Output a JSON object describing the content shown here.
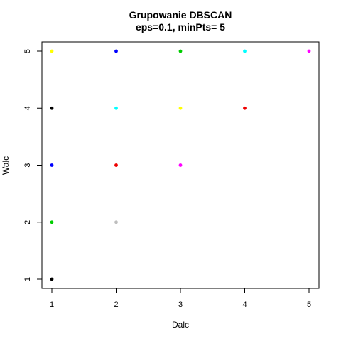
{
  "chart_data": {
    "type": "scatter",
    "title": "Grupowanie DBSCAN",
    "subtitle": "eps=0.1, minPts= 5",
    "xlabel": "Dalc",
    "ylabel": "Walc",
    "xlim": [
      1,
      5
    ],
    "ylim": [
      1,
      5
    ],
    "x_ticks": [
      "1",
      "2",
      "3",
      "4",
      "5"
    ],
    "y_ticks": [
      "1",
      "2",
      "3",
      "4",
      "5"
    ],
    "grid": false,
    "legend": "none",
    "points": [
      {
        "x": 1,
        "y": 5,
        "color": "#ffff00"
      },
      {
        "x": 2,
        "y": 5,
        "color": "#0000ff"
      },
      {
        "x": 3,
        "y": 5,
        "color": "#00cd00"
      },
      {
        "x": 4,
        "y": 5,
        "color": "#00ffff"
      },
      {
        "x": 5,
        "y": 5,
        "color": "#ff00ff"
      },
      {
        "x": 1,
        "y": 4,
        "color": "#000000"
      },
      {
        "x": 2,
        "y": 4,
        "color": "#00ffff"
      },
      {
        "x": 3,
        "y": 4,
        "color": "#ffff00"
      },
      {
        "x": 4,
        "y": 4,
        "color": "#ee0000"
      },
      {
        "x": 1,
        "y": 3,
        "color": "#0000ff"
      },
      {
        "x": 2,
        "y": 3,
        "color": "#ee0000"
      },
      {
        "x": 3,
        "y": 3,
        "color": "#ff00ff"
      },
      {
        "x": 1,
        "y": 2,
        "color": "#00cd00"
      },
      {
        "x": 2,
        "y": 2,
        "color": "#bebebe"
      },
      {
        "x": 1,
        "y": 1,
        "color": "#000000"
      }
    ]
  }
}
